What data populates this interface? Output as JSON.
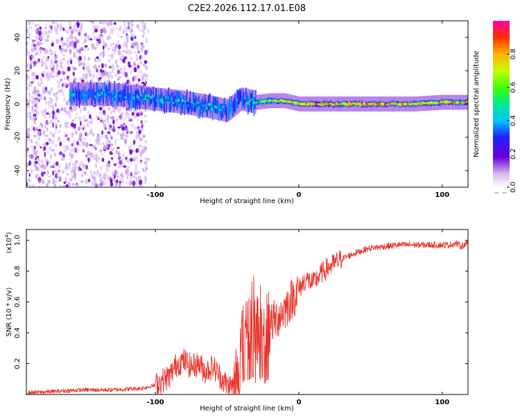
{
  "chart_data": [
    {
      "type": "heatmap",
      "title": "C2E2.2026.112.17.01.E08",
      "xlabel": "Height of straight line (km)",
      "ylabel": "Frequency (Hz)",
      "xlim": [
        -190,
        118
      ],
      "ylim": [
        -50,
        50
      ],
      "x_ticks": [
        -100,
        0,
        100
      ],
      "x_tick_labels": [
        "-100",
        "0",
        "100"
      ],
      "y_ticks": [
        40,
        20,
        0,
        -20,
        -40
      ],
      "y_tick_labels": [
        "40",
        "20",
        "0",
        "-20",
        "-40"
      ],
      "colorbar": {
        "label": "Normalized spectral amplitude",
        "range": [
          0,
          1
        ],
        "ticks": [
          0.0,
          0.2,
          0.4,
          0.6,
          0.8
        ],
        "tick_labels": [
          "0.0",
          "0.2",
          "0.4",
          "0.6",
          "0.8"
        ]
      },
      "ridge": {
        "x": [
          -160,
          -140,
          -120,
          -100,
          -80,
          -60,
          -50,
          -40,
          -30,
          -20,
          -10,
          0,
          20,
          40,
          60,
          80,
          100,
          118
        ],
        "y": [
          6,
          6,
          5,
          3,
          1,
          -2,
          -4,
          3,
          1,
          2,
          2,
          0,
          0,
          0,
          0,
          0,
          1,
          1
        ],
        "amplitude": [
          0.45,
          0.45,
          0.45,
          0.5,
          0.5,
          0.5,
          0.5,
          0.55,
          0.6,
          0.7,
          0.8,
          0.85,
          0.9,
          0.9,
          0.9,
          0.85,
          0.85,
          0.85
        ]
      }
    },
    {
      "type": "line",
      "xlabel": "Height of straight line (km)",
      "ylabel": "SNR (10 * v/v)",
      "y_multiplier_label": "(x10",
      "y_multiplier_exp": "4",
      "y_multiplier_close": ")",
      "xlim": [
        -190,
        118
      ],
      "ylim": [
        0,
        1.07
      ],
      "x_ticks": [
        -100,
        0,
        100
      ],
      "x_tick_labels": [
        "-100",
        "0",
        "100"
      ],
      "y_ticks": [
        0.2,
        0.4,
        0.6,
        0.8,
        1.0
      ],
      "y_tick_labels": [
        "0.2",
        "0.4",
        "0.6",
        "0.8",
        "1.0"
      ],
      "series": [
        {
          "name": "SNR",
          "color": "#e8322b",
          "x": [
            -190,
            -170,
            -150,
            -130,
            -110,
            -100,
            -90,
            -85,
            -80,
            -75,
            -70,
            -65,
            -60,
            -55,
            -50,
            -45,
            -40,
            -37,
            -35,
            -32,
            -30,
            -27,
            -25,
            -22,
            -20,
            -15,
            -10,
            -5,
            0,
            5,
            10,
            15,
            20,
            30,
            40,
            50,
            60,
            70,
            80,
            90,
            100,
            105,
            110,
            113,
            118
          ],
          "y": [
            0.01,
            0.02,
            0.03,
            0.03,
            0.04,
            0.06,
            0.12,
            0.2,
            0.22,
            0.18,
            0.2,
            0.15,
            0.18,
            0.12,
            0.06,
            0.05,
            0.3,
            0.55,
            0.45,
            0.6,
            0.35,
            0.55,
            0.25,
            0.5,
            0.45,
            0.5,
            0.55,
            0.62,
            0.68,
            0.75,
            0.72,
            0.78,
            0.82,
            0.88,
            0.92,
            0.95,
            0.96,
            0.97,
            0.97,
            0.97,
            0.97,
            0.97,
            0.98,
            0.96,
            0.98
          ]
        }
      ]
    }
  ]
}
